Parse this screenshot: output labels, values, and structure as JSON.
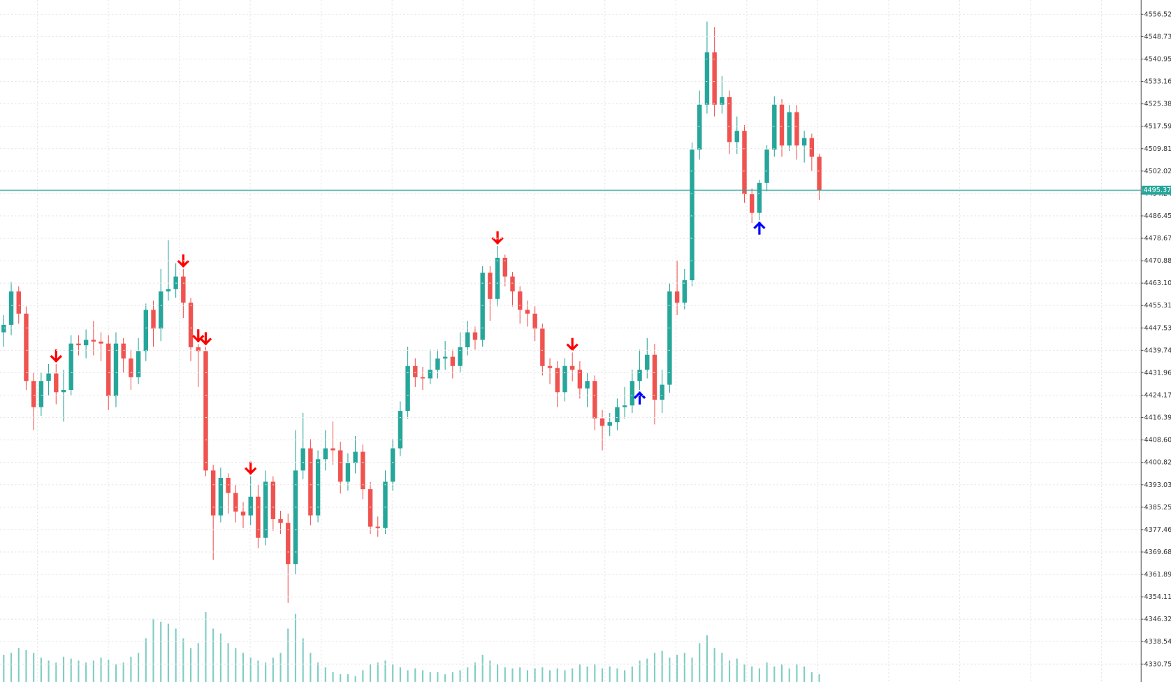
{
  "chart_data": {
    "type": "candlestick",
    "ylim": [
      4324.53,
      4561.45
    ],
    "yticks": [
      {
        "value": 4556.52,
        "label": "4556.520"
      },
      {
        "value": 4548.735,
        "label": "4548.735"
      },
      {
        "value": 4540.95,
        "label": "4540.950"
      },
      {
        "value": 4533.165,
        "label": "4533.165"
      },
      {
        "value": 4525.38,
        "label": "4525.380"
      },
      {
        "value": 4517.595,
        "label": "4517.595"
      },
      {
        "value": 4509.81,
        "label": "4509.810"
      },
      {
        "value": 4502.025,
        "label": "4502.025"
      },
      {
        "value": 4494.24,
        "label": "4494.240"
      },
      {
        "value": 4486.455,
        "label": "4486.455"
      },
      {
        "value": 4478.67,
        "label": "4478.670"
      },
      {
        "value": 4470.885,
        "label": "4470.885"
      },
      {
        "value": 4463.1,
        "label": "4463.100"
      },
      {
        "value": 4455.315,
        "label": "4455.315"
      },
      {
        "value": 4447.53,
        "label": "4447.530"
      },
      {
        "value": 4439.745,
        "label": "4439.745"
      },
      {
        "value": 4431.96,
        "label": "4431.960"
      },
      {
        "value": 4424.175,
        "label": "4424.175"
      },
      {
        "value": 4416.39,
        "label": "4416.390"
      },
      {
        "value": 4408.605,
        "label": "4408.605"
      },
      {
        "value": 4400.82,
        "label": "4400.820"
      },
      {
        "value": 4393.035,
        "label": "4393.035"
      },
      {
        "value": 4385.25,
        "label": "4385.250"
      },
      {
        "value": 4377.465,
        "label": "4377.465"
      },
      {
        "value": 4369.68,
        "label": "4369.680"
      },
      {
        "value": 4361.895,
        "label": "4361.895"
      },
      {
        "value": 4354.11,
        "label": "4354.110"
      },
      {
        "value": 4346.325,
        "label": "4346.325"
      },
      {
        "value": 4338.54,
        "label": "4338.540"
      },
      {
        "value": 4330.755,
        "label": "4330.755"
      }
    ],
    "grid": true,
    "up_color": "#26a69a",
    "down_color": "#ef5350",
    "current_price": 4495.377,
    "current_price_color": "#26a69a",
    "candles": [
      [
        4446.0,
        4452.0,
        4441.0,
        4448.6
      ],
      [
        4448.6,
        4463.5,
        4445.0,
        4460.2
      ],
      [
        4460.2,
        4462.0,
        4449.0,
        4452.5
      ],
      [
        4452.5,
        4455.0,
        4426.0,
        4429.1
      ],
      [
        4429.1,
        4432.0,
        4412.0,
        4420.0
      ],
      [
        4420.0,
        4432.0,
        4417.0,
        4429.1
      ],
      [
        4429.1,
        4435.0,
        4424.0,
        4431.7
      ],
      [
        4431.7,
        4435.0,
        4421.0,
        4425.2
      ],
      [
        4425.2,
        4433.0,
        4415.0,
        4426.0
      ],
      [
        4426.0,
        4445.0,
        4424.0,
        4442.1
      ],
      [
        4442.1,
        4445.0,
        4438.0,
        4441.5
      ],
      [
        4441.5,
        4447.0,
        4437.0,
        4443.4
      ],
      [
        4443.4,
        4450.0,
        4438.0,
        4442.8
      ],
      [
        4442.8,
        4446.0,
        4436.0,
        4442.1
      ],
      [
        4442.1,
        4445.0,
        4419.0,
        4423.9
      ],
      [
        4423.9,
        4446.0,
        4420.0,
        4442.1
      ],
      [
        4442.1,
        4444.0,
        4432.0,
        4436.9
      ],
      [
        4436.9,
        4440.0,
        4426.0,
        4430.4
      ],
      [
        4430.4,
        4444.0,
        4428.0,
        4439.5
      ],
      [
        4439.5,
        4456.0,
        4436.0,
        4453.8
      ],
      [
        4453.8,
        4457.0,
        4441.0,
        4447.3
      ],
      [
        4447.3,
        4468.0,
        4443.0,
        4460.2
      ],
      [
        4460.2,
        4478.0,
        4457.0,
        4461.0
      ],
      [
        4461.0,
        4470.0,
        4458.0,
        4465.4
      ],
      [
        4465.4,
        4468.0,
        4451.0,
        4456.3
      ],
      [
        4456.3,
        4458.0,
        4436.0,
        4440.8
      ],
      [
        4440.8,
        4442.0,
        4427.0,
        4439.5
      ],
      [
        4439.5,
        4441.0,
        4396.0,
        4398.0
      ],
      [
        4398.0,
        4400.0,
        4367.0,
        4382.4
      ],
      [
        4382.4,
        4399.0,
        4380.0,
        4395.4
      ],
      [
        4395.4,
        4397.0,
        4383.0,
        4390.2
      ],
      [
        4390.2,
        4393.0,
        4380.0,
        4383.7
      ],
      [
        4383.7,
        4387.0,
        4378.0,
        4382.4
      ],
      [
        4382.4,
        4396.0,
        4379.0,
        4388.9
      ],
      [
        4388.9,
        4393.0,
        4371.0,
        4374.6
      ],
      [
        4374.6,
        4398.0,
        4372.0,
        4394.1
      ],
      [
        4394.1,
        4396.0,
        4377.0,
        4381.1
      ],
      [
        4381.1,
        4384.0,
        4376.0,
        4379.8
      ],
      [
        4379.8,
        4383.0,
        4352.0,
        4365.5
      ],
      [
        4365.5,
        4412.0,
        4362.0,
        4398.0
      ],
      [
        4398.0,
        4418.0,
        4395.0,
        4405.7
      ],
      [
        4405.7,
        4409.0,
        4379.0,
        4382.4
      ],
      [
        4382.4,
        4405.0,
        4380.0,
        4401.9
      ],
      [
        4401.9,
        4412.0,
        4398.0,
        4405.7
      ],
      [
        4405.7,
        4415.0,
        4400.0,
        4405.0
      ],
      [
        4405.0,
        4408.0,
        4390.0,
        4394.1
      ],
      [
        4394.1,
        4404.0,
        4391.0,
        4400.6
      ],
      [
        4400.6,
        4410.0,
        4397.0,
        4404.5
      ],
      [
        4404.5,
        4407.0,
        4388.0,
        4391.5
      ],
      [
        4391.5,
        4394.0,
        4376.0,
        4378.5
      ],
      [
        4378.5,
        4382.0,
        4375.0,
        4378.0
      ],
      [
        4378.0,
        4398.0,
        4376.0,
        4394.1
      ],
      [
        4394.1,
        4409.0,
        4391.0,
        4405.7
      ],
      [
        4405.7,
        4422.0,
        4403.0,
        4418.7
      ],
      [
        4418.7,
        4441.0,
        4416.0,
        4434.3
      ],
      [
        4434.3,
        4437.0,
        4427.0,
        4430.4
      ],
      [
        4430.4,
        4434.0,
        4426.0,
        4430.0
      ],
      [
        4430.0,
        4440.0,
        4428.0,
        4433.0
      ],
      [
        4433.0,
        4440.0,
        4430.0,
        4436.9
      ],
      [
        4436.9,
        4443.0,
        4433.0,
        4437.5
      ],
      [
        4437.5,
        4440.0,
        4430.0,
        4434.3
      ],
      [
        4434.3,
        4446.0,
        4432.0,
        4440.8
      ],
      [
        4440.8,
        4450.0,
        4438.0,
        4446.0
      ],
      [
        4446.0,
        4448.0,
        4440.0,
        4443.4
      ],
      [
        4443.4,
        4469.0,
        4441.0,
        4466.7
      ],
      [
        4466.7,
        4469.0,
        4450.0,
        4457.6
      ],
      [
        4457.6,
        4476.0,
        4455.0,
        4471.9
      ],
      [
        4471.9,
        4473.0,
        4462.0,
        4465.4
      ],
      [
        4465.4,
        4467.0,
        4455.0,
        4460.2
      ],
      [
        4460.2,
        4462.0,
        4449.0,
        4453.8
      ],
      [
        4453.8,
        4457.0,
        4448.0,
        4452.5
      ],
      [
        4452.5,
        4455.0,
        4443.0,
        4447.3
      ],
      [
        4447.3,
        4449.0,
        4431.0,
        4434.3
      ],
      [
        4434.3,
        4437.0,
        4428.0,
        4433.6
      ],
      [
        4433.6,
        4436.0,
        4420.0,
        4425.2
      ],
      [
        4425.2,
        4437.0,
        4422.0,
        4434.3
      ],
      [
        4434.3,
        4439.0,
        4429.0,
        4433.0
      ],
      [
        4433.0,
        4436.0,
        4423.0,
        4426.5
      ],
      [
        4426.5,
        4432.0,
        4420.0,
        4429.1
      ],
      [
        4429.1,
        4431.0,
        4412.0,
        4416.1
      ],
      [
        4416.1,
        4419.0,
        4405.0,
        4413.5
      ],
      [
        4413.5,
        4418.0,
        4410.0,
        4414.8
      ],
      [
        4414.8,
        4423.0,
        4412.0,
        4420.0
      ],
      [
        4420.0,
        4427.0,
        4416.0,
        4420.6
      ],
      [
        4420.6,
        4433.0,
        4418.0,
        4429.1
      ],
      [
        4429.1,
        4440.0,
        4426.0,
        4433.0
      ],
      [
        4433.0,
        4444.0,
        4430.0,
        4438.2
      ],
      [
        4438.2,
        4442.0,
        4414.0,
        4422.6
      ],
      [
        4422.6,
        4433.0,
        4418.0,
        4427.8
      ],
      [
        4427.8,
        4463.0,
        4425.0,
        4460.2
      ],
      [
        4460.2,
        4471.0,
        4452.0,
        4456.3
      ],
      [
        4456.3,
        4468.0,
        4454.0,
        4464.1
      ],
      [
        4464.1,
        4512.0,
        4462.0,
        4509.5
      ],
      [
        4509.5,
        4530.0,
        4506.0,
        4525.1
      ],
      [
        4525.1,
        4554.0,
        4522.0,
        4543.3
      ],
      [
        4543.3,
        4552.0,
        4521.0,
        4525.1
      ],
      [
        4525.1,
        4535.0,
        4522.0,
        4527.7
      ],
      [
        4527.7,
        4530.0,
        4508.0,
        4512.1
      ],
      [
        4512.1,
        4521.0,
        4508.0,
        4516.0
      ],
      [
        4516.0,
        4518.0,
        4491.0,
        4494.0
      ],
      [
        4494.0,
        4496.0,
        4484.0,
        4487.5
      ],
      [
        4487.5,
        4499.0,
        4485.0,
        4497.9
      ],
      [
        4497.9,
        4511.0,
        4495.0,
        4509.5
      ],
      [
        4509.5,
        4528.0,
        4507.0,
        4525.1
      ],
      [
        4525.1,
        4527.0,
        4507.0,
        4510.9
      ],
      [
        4510.9,
        4525.0,
        4509.0,
        4522.5
      ],
      [
        4522.5,
        4525.0,
        4506.0,
        4510.9
      ],
      [
        4510.9,
        4516.0,
        4505.0,
        4513.5
      ],
      [
        4513.5,
        4515.0,
        4502.0,
        4507.0
      ],
      [
        4507.0,
        4508.0,
        4492.0,
        4495.3
      ]
    ],
    "volume": [
      28,
      30,
      35,
      33,
      30,
      25,
      22,
      20,
      26,
      24,
      22,
      20,
      22,
      25,
      23,
      18,
      20,
      26,
      30,
      45,
      65,
      62,
      60,
      55,
      45,
      35,
      40,
      72,
      55,
      50,
      40,
      35,
      30,
      25,
      22,
      20,
      25,
      30,
      55,
      70,
      45,
      30,
      20,
      15,
      10,
      8,
      8,
      6,
      12,
      18,
      20,
      22,
      18,
      15,
      12,
      14,
      12,
      10,
      10,
      8,
      10,
      12,
      15,
      20,
      28,
      22,
      18,
      15,
      14,
      15,
      12,
      14,
      15,
      12,
      14,
      12,
      14,
      18,
      16,
      18,
      14,
      16,
      14,
      12,
      16,
      22,
      24,
      30,
      32,
      25,
      28,
      30,
      25,
      40,
      48,
      35,
      30,
      22,
      24,
      18,
      16,
      14,
      20,
      16,
      18,
      14,
      18,
      16,
      10,
      8
    ],
    "volume_color": "#7fcdc4",
    "signals": [
      {
        "index": 7,
        "direction": "down",
        "color": "#ff0000"
      },
      {
        "index": 24,
        "direction": "down",
        "color": "#ff0000"
      },
      {
        "index": 26,
        "direction": "down",
        "color": "#ff0000"
      },
      {
        "index": 27,
        "direction": "down",
        "color": "#ff0000"
      },
      {
        "index": 33,
        "direction": "down",
        "color": "#ff0000"
      },
      {
        "index": 66,
        "direction": "down",
        "color": "#ff0000"
      },
      {
        "index": 76,
        "direction": "down",
        "color": "#ff0000"
      },
      {
        "index": 85,
        "direction": "up",
        "color": "#0000ff"
      },
      {
        "index": 101,
        "direction": "up",
        "color": "#0000ff"
      }
    ]
  }
}
